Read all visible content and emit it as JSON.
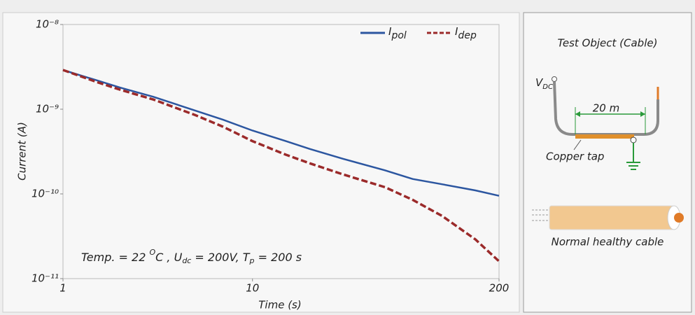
{
  "chart_data": {
    "type": "line",
    "x_label": "Time (s)",
    "y_label": "Current (A)",
    "xscale": "log",
    "yscale": "log",
    "xlim": [
      1,
      200
    ],
    "ylim": [
      1e-11,
      1e-08
    ],
    "xticks": [
      1,
      10,
      200
    ],
    "yticks": [
      {
        "value": 1e-11,
        "label": "10⁻¹¹"
      },
      {
        "value": 1e-10,
        "label": "10⁻¹⁰"
      },
      {
        "value": 1e-09,
        "label": "10⁻⁹"
      },
      {
        "value": 1e-08,
        "label": "10⁻⁸"
      }
    ],
    "legend": "top-right",
    "x": [
      1,
      1.5,
      2,
      3,
      5,
      7,
      10,
      15,
      20,
      30,
      50,
      70,
      100,
      150,
      200
    ],
    "series": [
      {
        "name": "I",
        "name_sub": "pol",
        "color": "#2c56a0",
        "dash": false,
        "values": [
          2.9e-09,
          2.2e-09,
          1.8e-09,
          1.4e-09,
          9.6e-10,
          7.5e-10,
          5.6e-10,
          4.2e-10,
          3.4e-10,
          2.6e-10,
          1.9e-10,
          1.5e-10,
          1.3e-10,
          1.1e-10,
          9.5e-11
        ]
      },
      {
        "name": "I",
        "name_sub": "dep",
        "color": "#9b2a2a",
        "dash": true,
        "values": [
          2.9e-09,
          2.1e-09,
          1.7e-09,
          1.3e-09,
          8.5e-10,
          6.2e-10,
          4.2e-10,
          2.9e-10,
          2.3e-10,
          1.7e-10,
          1.2e-10,
          8.5e-11,
          5.5e-11,
          2.9e-11,
          1.6e-11
        ]
      }
    ],
    "annotation": [
      {
        "text": "Temp. = 22 ",
        "style": "normal"
      },
      {
        "text": "O",
        "style": "sup"
      },
      {
        "text": "C , U",
        "style": "normal"
      },
      {
        "text": "dc",
        "style": "sub"
      },
      {
        "text": " = 200V, T",
        "style": "normal"
      },
      {
        "text": "p",
        "style": "sub"
      },
      {
        "text": " = 200 s",
        "style": "normal"
      }
    ]
  },
  "diagram": {
    "title": "Test Object (Cable)",
    "vdc": "V",
    "vdc_sub": "DC",
    "length": "20 m",
    "tape": "Copper tap",
    "healthy": "Normal healthy cable"
  }
}
